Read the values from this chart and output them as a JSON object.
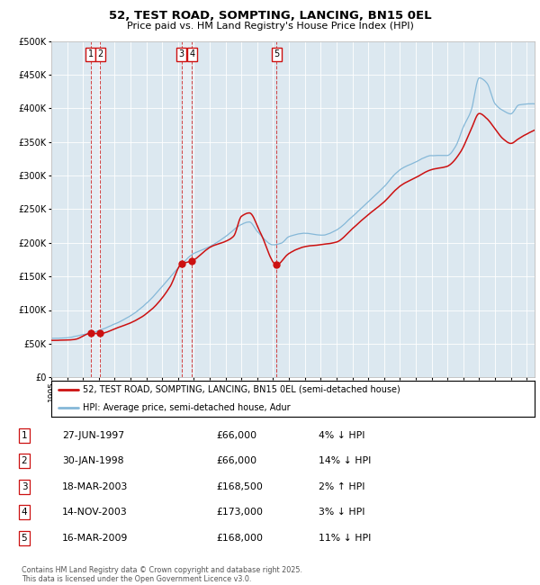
{
  "title": "52, TEST ROAD, SOMPTING, LANCING, BN15 0EL",
  "subtitle": "Price paid vs. HM Land Registry's House Price Index (HPI)",
  "bg_color": "#dce8f0",
  "hpi_color": "#85b8d8",
  "price_color": "#cc1111",
  "ylim": [
    0,
    500000
  ],
  "yticks": [
    0,
    50000,
    100000,
    150000,
    200000,
    250000,
    300000,
    350000,
    400000,
    450000,
    500000
  ],
  "legend_label_red": "52, TEST ROAD, SOMPTING, LANCING, BN15 0EL (semi-detached house)",
  "legend_label_blue": "HPI: Average price, semi-detached house, Adur",
  "footnote": "Contains HM Land Registry data © Crown copyright and database right 2025.\nThis data is licensed under the Open Government Licence v3.0.",
  "transactions": [
    {
      "id": 1,
      "date_label": "27-JUN-1997",
      "date_num": 1997.49,
      "price": 66000,
      "hpi_pct": "4% ↓ HPI"
    },
    {
      "id": 2,
      "date_label": "30-JAN-1998",
      "date_num": 1998.08,
      "price": 66000,
      "hpi_pct": "14% ↓ HPI"
    },
    {
      "id": 3,
      "date_label": "18-MAR-2003",
      "date_num": 2003.21,
      "price": 168500,
      "hpi_pct": "2% ↑ HPI"
    },
    {
      "id": 4,
      "date_label": "14-NOV-2003",
      "date_num": 2003.87,
      "price": 173000,
      "hpi_pct": "3% ↓ HPI"
    },
    {
      "id": 5,
      "date_label": "16-MAR-2009",
      "date_num": 2009.21,
      "price": 168000,
      "hpi_pct": "11% ↓ HPI"
    }
  ],
  "hpi_key_years": [
    1995.0,
    1996.0,
    1997.0,
    1998.0,
    1999.0,
    2000.0,
    2001.0,
    2002.0,
    2003.0,
    2004.0,
    2005.0,
    2006.0,
    2007.0,
    2007.5,
    2008.0,
    2009.0,
    2009.5,
    2010.0,
    2011.0,
    2012.0,
    2013.0,
    2014.0,
    2015.0,
    2016.0,
    2017.0,
    2018.0,
    2019.0,
    2020.0,
    2020.5,
    2021.0,
    2021.5,
    2022.0,
    2022.5,
    2023.0,
    2023.5,
    2024.0,
    2024.5,
    2025.3
  ],
  "hpi_key_vals": [
    58000,
    59000,
    64000,
    70000,
    80000,
    92000,
    110000,
    135000,
    162000,
    185000,
    195000,
    210000,
    228000,
    232000,
    218000,
    198000,
    200000,
    210000,
    215000,
    212000,
    220000,
    240000,
    262000,
    285000,
    310000,
    322000,
    332000,
    332000,
    345000,
    375000,
    400000,
    448000,
    440000,
    410000,
    400000,
    395000,
    408000,
    410000
  ],
  "price_key_years": [
    1995.0,
    1996.5,
    1997.49,
    1998.08,
    1999.0,
    2000.5,
    2001.5,
    2002.5,
    2003.21,
    2003.87,
    2005.0,
    2006.5,
    2007.0,
    2007.5,
    2008.2,
    2009.21,
    2010.0,
    2011.0,
    2012.0,
    2013.0,
    2014.0,
    2015.0,
    2016.0,
    2017.0,
    2018.0,
    2019.0,
    2020.0,
    2020.8,
    2021.5,
    2022.0,
    2022.5,
    2023.0,
    2023.5,
    2024.0,
    2024.5,
    2025.3
  ],
  "price_key_vals": [
    55000,
    57000,
    66000,
    66000,
    73000,
    87000,
    105000,
    135000,
    168500,
    173000,
    193000,
    210000,
    240000,
    245000,
    215000,
    168000,
    185000,
    195000,
    198000,
    202000,
    222000,
    243000,
    262000,
    285000,
    298000,
    310000,
    315000,
    335000,
    370000,
    393000,
    385000,
    370000,
    355000,
    348000,
    355000,
    365000
  ]
}
